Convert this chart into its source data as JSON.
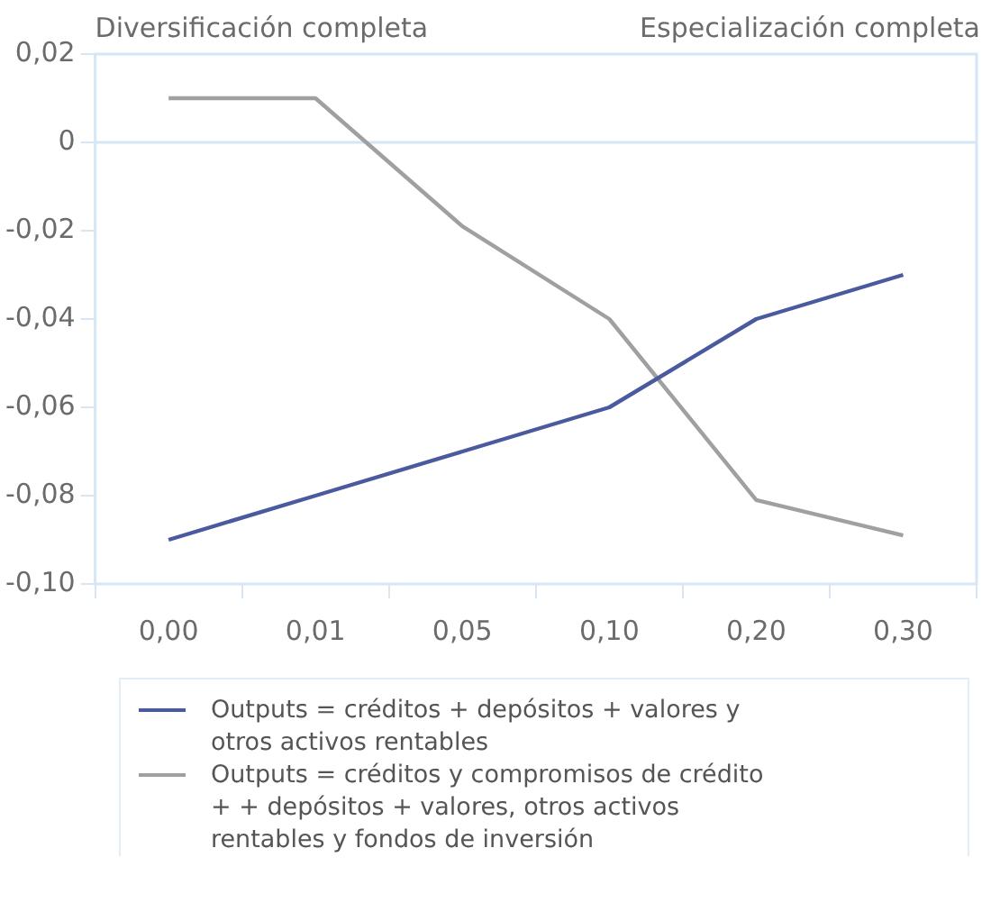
{
  "chart_data": {
    "type": "line",
    "categories": [
      "0,00",
      "0,01",
      "0,05",
      "0,10",
      "0,20",
      "0,30"
    ],
    "series": [
      {
        "name": "Outputs = créditos + depósitos + valores y otros activos rentables",
        "color": "#4a5a9e",
        "values": [
          -0.09,
          -0.08,
          -0.07,
          -0.06,
          -0.04,
          -0.03
        ]
      },
      {
        "name": "Outputs = créditos y compromisos de crédito + + depósitos + valores, otros activos rentables y fondos de inversión",
        "color": "#a0a0a0",
        "values": [
          0.01,
          0.01,
          -0.019,
          -0.04,
          -0.081,
          -0.089
        ]
      }
    ],
    "ylim": [
      -0.1,
      0.02
    ],
    "yticks": [
      {
        "value": 0.02,
        "label": "0,02"
      },
      {
        "value": 0,
        "label": "0"
      },
      {
        "value": -0.02,
        "label": "-0,02"
      },
      {
        "value": -0.04,
        "label": "-0,04"
      },
      {
        "value": -0.06,
        "label": "-0,06"
      },
      {
        "value": -0.08,
        "label": "-0,08"
      },
      {
        "value": -0.1,
        "label": "-0,10"
      }
    ],
    "ref_lines": [
      {
        "axis": "y",
        "value": 0,
        "color": "#d6e6f4"
      }
    ],
    "annotations": [
      "Diversificación completa",
      "Especialización completa"
    ],
    "legend": "bottom",
    "marker": "none",
    "line_style": "solid"
  }
}
